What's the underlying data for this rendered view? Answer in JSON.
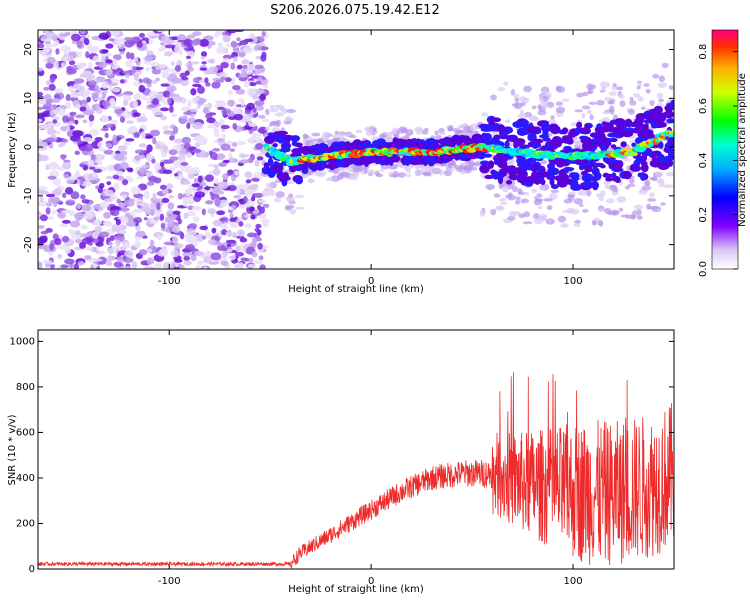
{
  "chart_data": [
    {
      "type": "heatmap",
      "title": "S206.2026.075.19.42.E12",
      "xlabel": "Height of straight line (km)",
      "ylabel": "Frequency (Hz)",
      "xlim": [
        -165,
        150
      ],
      "ylim": [
        -25,
        24
      ],
      "xticks": [
        -100,
        0,
        100
      ],
      "xtick_labels": [
        "-100",
        "0",
        "100"
      ],
      "yticks": [
        -20,
        -10,
        0,
        10,
        20
      ],
      "ytick_labels": [
        "-20",
        "-10",
        "0",
        "10",
        "20"
      ],
      "colorbar": {
        "label": "Normalized spectral amplitude",
        "range": [
          0.0,
          0.88
        ],
        "ticks": [
          0.0,
          0.2,
          0.4,
          0.6,
          0.8
        ],
        "tick_labels": [
          "0.0",
          "0.2",
          "0.4",
          "0.6",
          "0.8"
        ]
      },
      "features": [
        {
          "name": "noise region",
          "x_range": [
            -165,
            -52
          ],
          "freq_range": [
            -25,
            24
          ],
          "amplitude": 0.1
        },
        {
          "name": "signal band",
          "x_range": [
            -52,
            150
          ],
          "center_freq_points": [
            [
              -52,
              0
            ],
            [
              -40,
              -3
            ],
            [
              -25,
              -2
            ],
            [
              0,
              -1
            ],
            [
              30,
              -1
            ],
            [
              55,
              0
            ],
            [
              70,
              -1
            ],
            [
              100,
              -2
            ],
            [
              130,
              -1
            ],
            [
              148,
              3
            ]
          ],
          "amplitude": 0.8
        }
      ]
    },
    {
      "type": "line",
      "title": "",
      "xlabel": "Height of straight line (km)",
      "ylabel": "SNR (10 * v/v)",
      "xlim": [
        -165,
        150
      ],
      "ylim": [
        0,
        1050
      ],
      "xticks": [
        -100,
        0,
        100
      ],
      "xtick_labels": [
        "-100",
        "0",
        "100"
      ],
      "yticks": [
        0,
        200,
        400,
        600,
        800,
        1000
      ],
      "ytick_labels": [
        "0",
        "200",
        "400",
        "600",
        "800",
        "1000"
      ],
      "color": "#ee2b2b",
      "series": [
        {
          "name": "SNR",
          "envelope_points": [
            [
              -165,
              22
            ],
            [
              -40,
              22
            ],
            [
              -35,
              70
            ],
            [
              -20,
              150
            ],
            [
              0,
              260
            ],
            [
              15,
              340
            ],
            [
              30,
              400
            ],
            [
              45,
              420
            ],
            [
              60,
              420
            ],
            [
              75,
              380
            ],
            [
              100,
              340
            ],
            [
              120,
              330
            ],
            [
              140,
              370
            ],
            [
              150,
              420
            ]
          ]
        }
      ]
    }
  ]
}
